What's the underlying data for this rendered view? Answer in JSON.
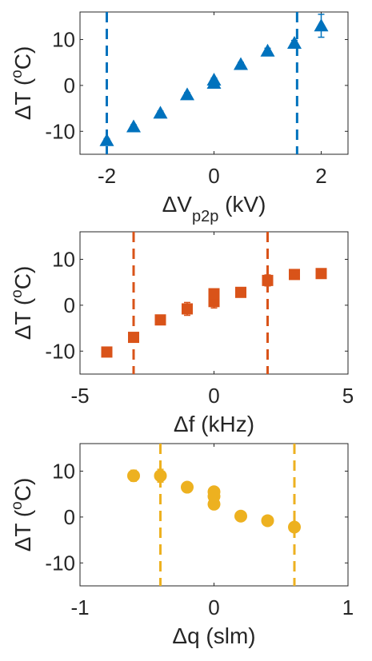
{
  "chart_data": [
    {
      "type": "scatter",
      "marker": "triangle",
      "color": "#0072BD",
      "xlabel_main": "ΔV",
      "xlabel_sub": "p2p",
      "xlabel_unit": " (kV)",
      "ylabel_main": "ΔT (",
      "ylabel_sup": "o",
      "ylabel_unit": "C)",
      "xlim": [
        -2.5,
        2.5
      ],
      "ylim": [
        -15,
        16
      ],
      "xticks": [
        -2,
        0,
        2
      ],
      "yticks": [
        -10,
        0,
        10
      ],
      "vlines": [
        -2.0,
        1.55
      ],
      "grid": false,
      "points": [
        {
          "x": -2.0,
          "y": -12.0,
          "err": 0.4
        },
        {
          "x": -1.5,
          "y": -9.0,
          "err": 0.4
        },
        {
          "x": -1.0,
          "y": -6.0,
          "err": 0.4
        },
        {
          "x": -0.5,
          "y": -2.0,
          "err": 0.4
        },
        {
          "x": 0.0,
          "y": 0.5,
          "err": 0.4
        },
        {
          "x": 0.0,
          "y": 1.2,
          "err": 0.4
        },
        {
          "x": 0.5,
          "y": 4.6,
          "err": 0.4
        },
        {
          "x": 1.0,
          "y": 7.5,
          "err": 0.6
        },
        {
          "x": 1.5,
          "y": 9.2,
          "err": 0.6
        },
        {
          "x": 2.0,
          "y": 13.0,
          "err": 2.5
        }
      ]
    },
    {
      "type": "scatter",
      "marker": "square",
      "color": "#D95319",
      "xlabel_main": "Δf (kHz)",
      "xlabel_sub": "",
      "xlabel_unit": "",
      "ylabel_main": "ΔT (",
      "ylabel_sup": "o",
      "ylabel_unit": "C)",
      "xlim": [
        -5,
        5
      ],
      "ylim": [
        -15,
        16
      ],
      "xticks": [
        -5,
        0,
        5
      ],
      "yticks": [
        -10,
        0,
        10
      ],
      "vlines": [
        -3.0,
        2.0
      ],
      "grid": false,
      "points": [
        {
          "x": -4.0,
          "y": -10.2,
          "err": 1.0
        },
        {
          "x": -3.0,
          "y": -7.0,
          "err": 1.0
        },
        {
          "x": -2.0,
          "y": -3.2,
          "err": 0.6
        },
        {
          "x": -1.0,
          "y": -0.8,
          "err": 1.4
        },
        {
          "x": 0.0,
          "y": 0.8,
          "err": 1.4
        },
        {
          "x": 0.0,
          "y": 2.5,
          "err": 0.8
        },
        {
          "x": 1.0,
          "y": 2.8,
          "err": 1.0
        },
        {
          "x": 2.0,
          "y": 5.4,
          "err": 1.2
        },
        {
          "x": 3.0,
          "y": 6.7,
          "err": 0.5
        },
        {
          "x": 4.0,
          "y": 6.9,
          "err": 0.5
        }
      ]
    },
    {
      "type": "scatter",
      "marker": "circle",
      "color": "#EDB120",
      "xlabel_main": "Δq (slm)",
      "xlabel_sub": "",
      "xlabel_unit": "",
      "ylabel_main": "ΔT (",
      "ylabel_sup": "o",
      "ylabel_unit": "C)",
      "xlim": [
        -1,
        1
      ],
      "ylim": [
        -15,
        16
      ],
      "xticks": [
        -1,
        0,
        1
      ],
      "yticks": [
        -10,
        0,
        10
      ],
      "vlines": [
        -0.4,
        0.6
      ],
      "grid": false,
      "points": [
        {
          "x": -0.6,
          "y": 9.0,
          "err": 1.2
        },
        {
          "x": -0.4,
          "y": 9.0,
          "err": 1.4
        },
        {
          "x": -0.2,
          "y": 6.5,
          "err": 0.5
        },
        {
          "x": 0.0,
          "y": 2.8,
          "err": 0.5
        },
        {
          "x": 0.0,
          "y": 4.5,
          "err": 0.5
        },
        {
          "x": 0.0,
          "y": 5.5,
          "err": 0.5
        },
        {
          "x": 0.2,
          "y": 0.2,
          "err": 0.5
        },
        {
          "x": 0.4,
          "y": -0.8,
          "err": 0.6
        },
        {
          "x": 0.6,
          "y": -2.2,
          "err": 0.8
        }
      ]
    }
  ]
}
